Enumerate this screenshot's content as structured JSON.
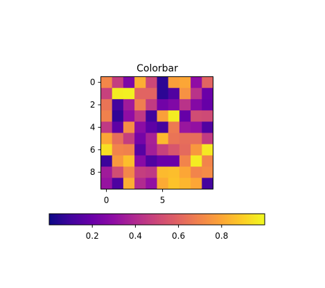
{
  "chart_data": {
    "type": "heatmap",
    "title": "Colorbar",
    "colormap": "plasma",
    "rows": 10,
    "cols": 10,
    "values": [
      [
        0.71,
        0.47,
        0.25,
        0.82,
        0.5,
        0.06,
        0.78,
        0.8,
        0.3,
        0.6
      ],
      [
        0.48,
        0.97,
        0.98,
        0.6,
        0.6,
        0.06,
        0.14,
        0.74,
        0.43,
        0.2
      ],
      [
        0.65,
        0.11,
        0.35,
        0.68,
        0.46,
        0.22,
        0.26,
        0.43,
        0.27,
        0.19
      ],
      [
        0.69,
        0.07,
        0.3,
        0.45,
        0.1,
        0.78,
        0.97,
        0.19,
        0.52,
        0.51
      ],
      [
        0.45,
        0.17,
        0.73,
        0.29,
        0.17,
        0.11,
        0.67,
        0.33,
        0.31,
        0.14
      ],
      [
        0.8,
        0.63,
        0.47,
        0.23,
        0.37,
        0.85,
        0.65,
        0.63,
        0.63,
        0.46
      ],
      [
        0.94,
        0.7,
        0.69,
        0.15,
        0.36,
        0.48,
        0.55,
        0.62,
        0.76,
        0.96
      ],
      [
        0.09,
        0.76,
        0.86,
        0.28,
        0.14,
        0.2,
        0.2,
        0.7,
        0.97,
        0.7
      ],
      [
        0.35,
        0.52,
        0.71,
        0.47,
        0.45,
        0.85,
        0.86,
        0.8,
        0.7,
        0.72
      ],
      [
        0.32,
        0.13,
        0.82,
        0.4,
        0.31,
        0.81,
        0.87,
        0.84,
        0.8,
        0.11
      ]
    ],
    "x_ticks": [
      {
        "value": 0,
        "label": "0"
      },
      {
        "value": 5,
        "label": "5"
      }
    ],
    "y_ticks": [
      {
        "value": 0,
        "label": "0"
      },
      {
        "value": 2,
        "label": "2"
      },
      {
        "value": 4,
        "label": "4"
      },
      {
        "value": 6,
        "label": "6"
      },
      {
        "value": 8,
        "label": "8"
      }
    ],
    "colorbar": {
      "orientation": "horizontal",
      "vmin": 0.0,
      "vmax": 1.0,
      "ticks": [
        {
          "value": 0.2,
          "label": "0.2"
        },
        {
          "value": 0.4,
          "label": "0.4"
        },
        {
          "value": 0.6,
          "label": "0.6"
        },
        {
          "value": 0.8,
          "label": "0.8"
        }
      ]
    },
    "grid": false,
    "legend": "none"
  }
}
